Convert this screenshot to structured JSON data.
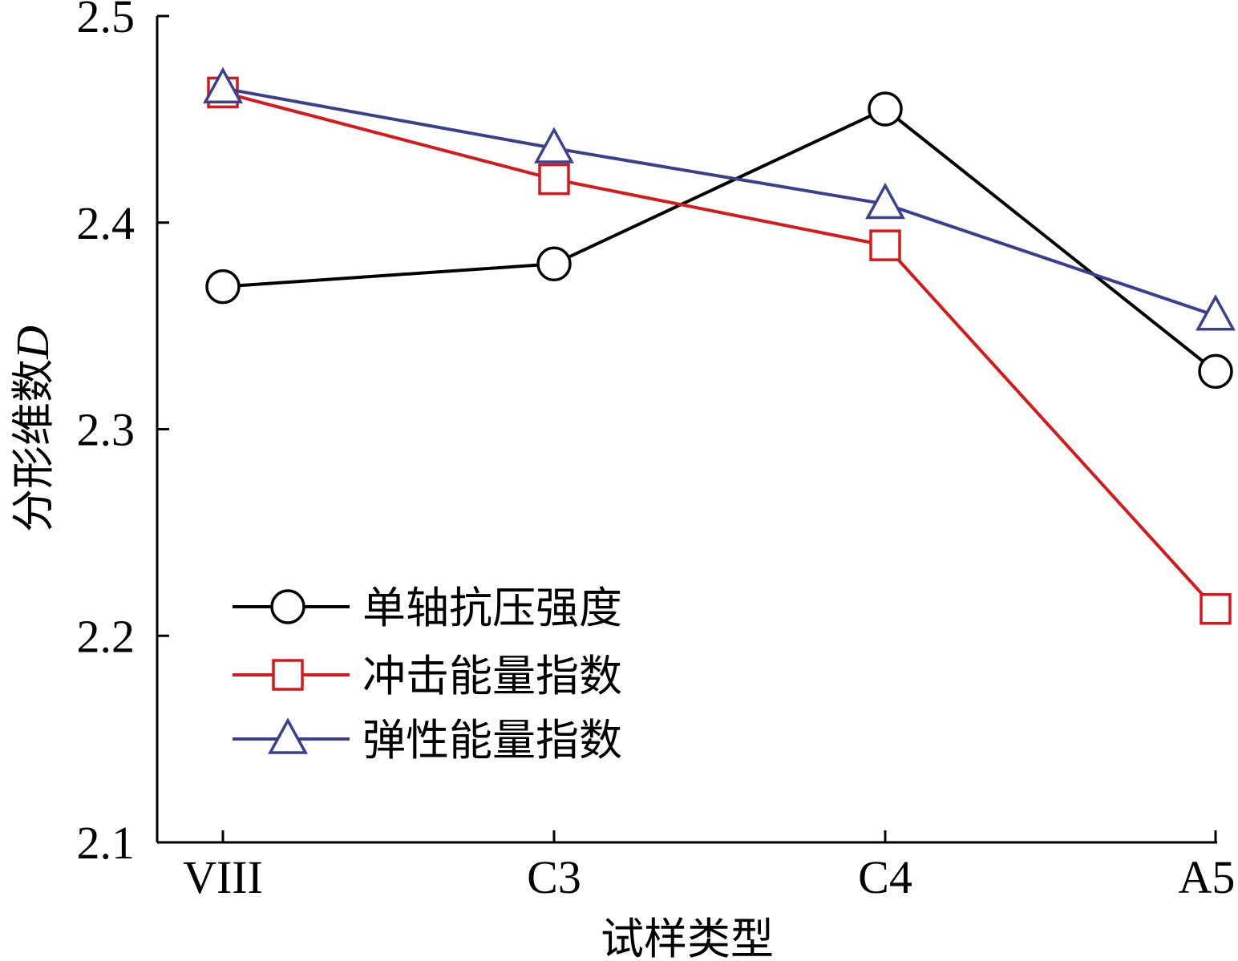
{
  "chart_data": {
    "type": "line",
    "categories": [
      "VIII",
      "C3",
      "C4",
      "A5"
    ],
    "xlabel": "试样类型",
    "ylabel": "分形维数",
    "ylabel_italic": "D",
    "ylim": [
      2.1,
      2.5
    ],
    "yticks": [
      "2.1",
      "2.2",
      "2.3",
      "2.4",
      "2.5"
    ],
    "grid": false,
    "legend_position": "lower-left",
    "series": [
      {
        "name": "单轴抗压强度",
        "marker": "circle",
        "color": "#000000",
        "values": [
          2.369,
          2.38,
          2.455,
          2.328
        ]
      },
      {
        "name": "冲击能量指数",
        "marker": "square",
        "color": "#d7191c",
        "values": [
          2.463,
          2.421,
          2.389,
          2.213
        ]
      },
      {
        "name": "弹性能量指数",
        "marker": "triangle",
        "color": "#3a3f8f",
        "values": [
          2.465,
          2.436,
          2.409,
          2.355
        ]
      }
    ]
  }
}
